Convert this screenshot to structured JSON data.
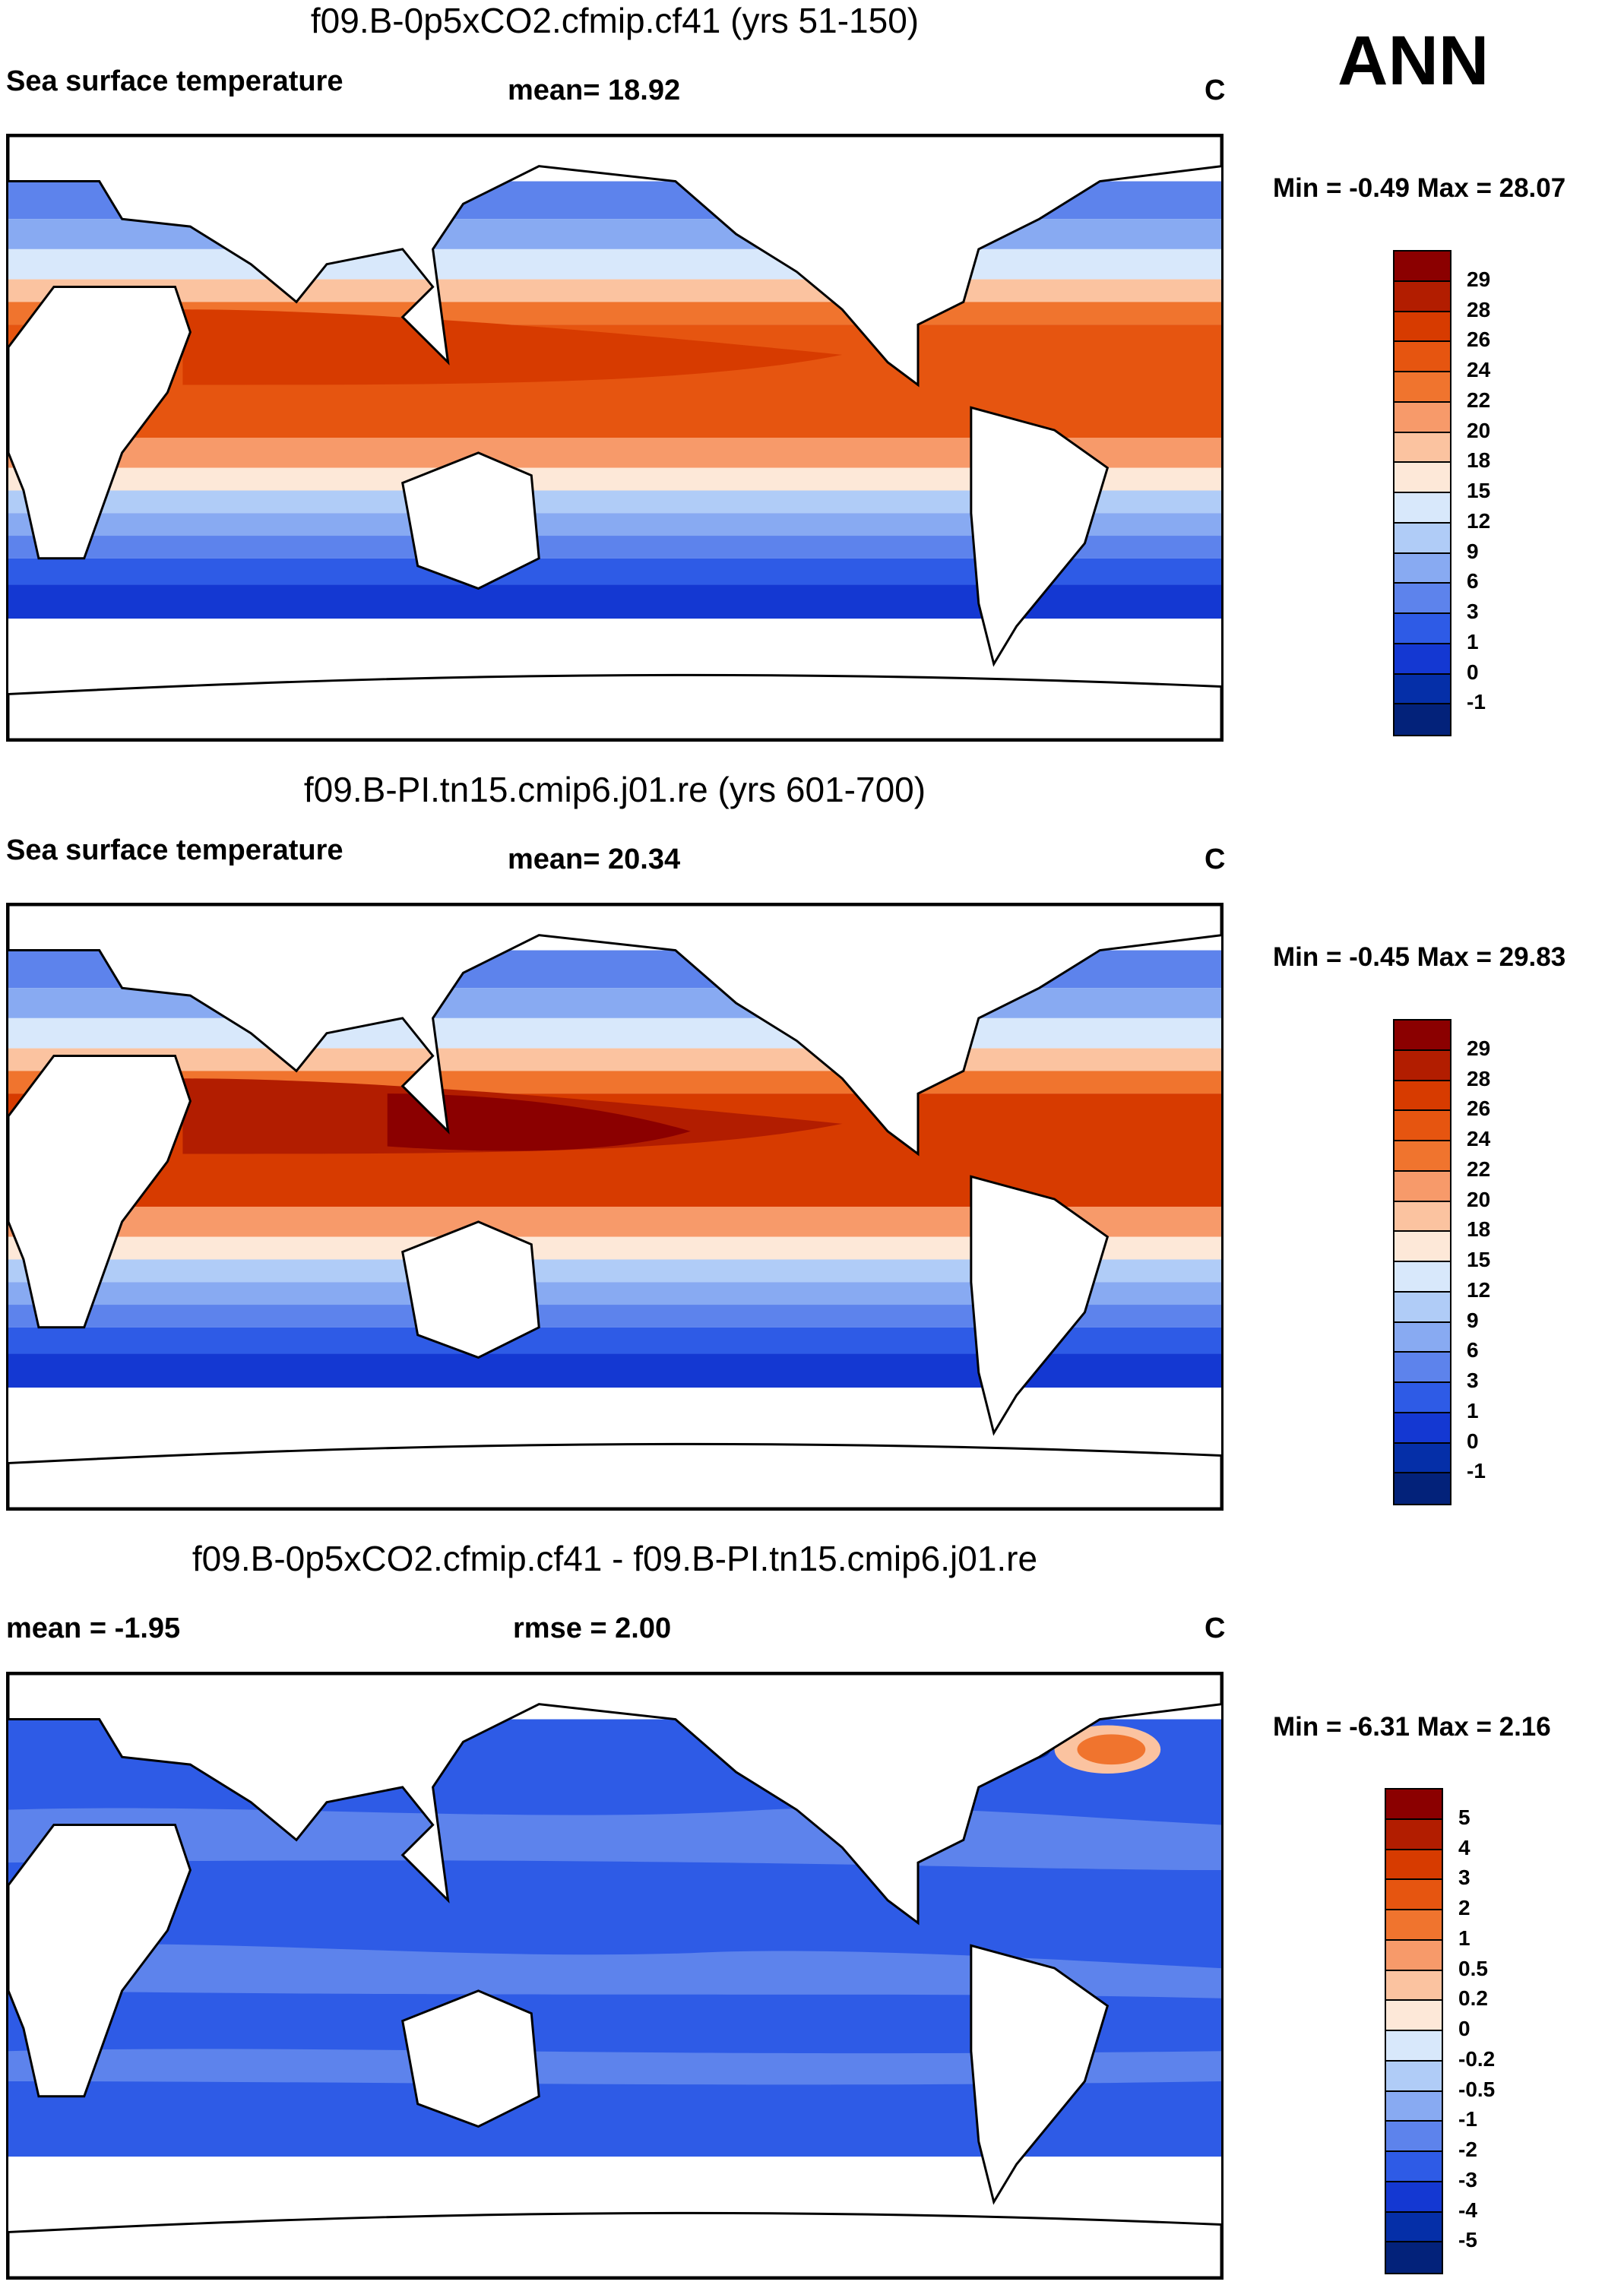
{
  "season": "ANN",
  "panels": [
    {
      "title": "f09.B-0p5xCO2.cfmip.cf41 (yrs 51-150)",
      "left_label": "Sea surface temperature",
      "center_label": "mean=  18.92",
      "units": "C",
      "minmax": "Min =  -0.49 Max =  28.07",
      "map_label": "Annual mean sea surface temperature map"
    },
    {
      "title": "f09.B-PI.tn15.cmip6.j01.re (yrs 601-700)",
      "left_label": "Sea surface temperature",
      "center_label": "mean=  20.34",
      "units": "C",
      "minmax": "Min =  -0.45 Max =  29.83",
      "map_label": "Annual mean sea surface temperature map"
    },
    {
      "title": "f09.B-0p5xCO2.cfmip.cf41 - f09.B-PI.tn15.cmip6.j01.re",
      "left_label": "mean =  -1.95",
      "center_label": "rmse =   2.00",
      "units": "C",
      "minmax": "Min =  -6.31 Max =   2.16",
      "map_label": "Sea surface temperature difference map"
    }
  ],
  "colorbar_abs": {
    "ticks": [
      "29",
      "28",
      "26",
      "24",
      "22",
      "20",
      "18",
      "15",
      "12",
      "9",
      "6",
      "3",
      "1",
      "0",
      "-1"
    ],
    "colors": [
      "#8b0000",
      "#b21d00",
      "#d73b00",
      "#e65510",
      "#f0742e",
      "#f79a6a",
      "#fbc3a0",
      "#fde8d8",
      "#d8e8fb",
      "#b0ccf7",
      "#88aaf2",
      "#5d83ec",
      "#2e5be6",
      "#1438d2",
      "#052fa8",
      "#03227a"
    ]
  },
  "colorbar_diff": {
    "ticks": [
      "5",
      "4",
      "3",
      "2",
      "1",
      "0.5",
      "0.2",
      "0",
      "-0.2",
      "-0.5",
      "-1",
      "-2",
      "-3",
      "-4",
      "-5"
    ],
    "colors": [
      "#8b0000",
      "#b21d00",
      "#d73b00",
      "#e65510",
      "#f0742e",
      "#f79a6a",
      "#fbc3a0",
      "#fde8d8",
      "#d8e8fb",
      "#b0ccf7",
      "#88aaf2",
      "#5d83ec",
      "#2e5be6",
      "#1438d2",
      "#052fa8",
      "#03227a"
    ]
  }
}
